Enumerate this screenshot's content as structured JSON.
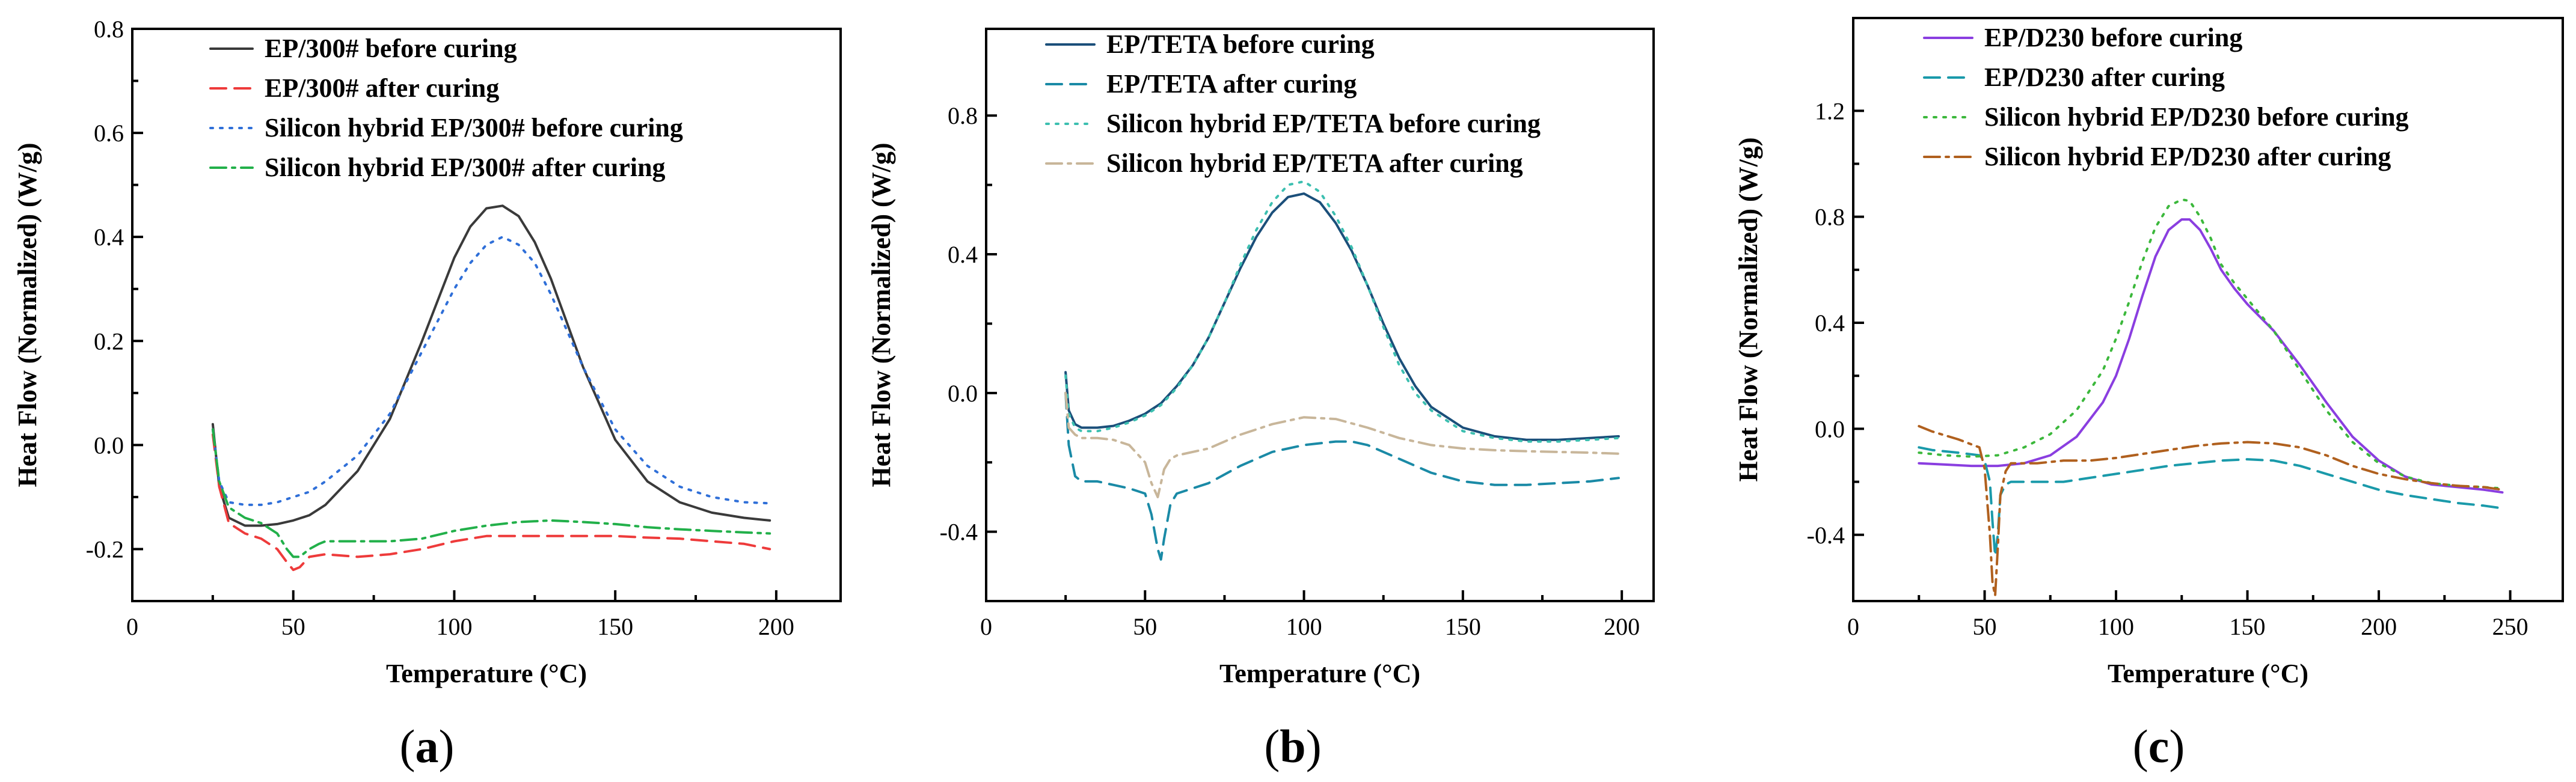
{
  "chart_data": [
    {
      "type": "line",
      "panel_label": "a",
      "xlabel": "Temperature (°C)",
      "ylabel": "Heat Flow (Normalized) (W/g)",
      "xlim": [
        0,
        220
      ],
      "ylim": [
        -0.3,
        0.8
      ],
      "xticks": [
        0,
        50,
        100,
        150,
        200
      ],
      "yticks": [
        -0.2,
        0.0,
        0.2,
        0.4,
        0.6,
        0.8
      ],
      "ytick_labels": [
        "-0.2",
        "0.0",
        "0.2",
        "0.4",
        "0.6",
        "0.8"
      ],
      "legend_position": "top-left",
      "series": [
        {
          "name": "EP/300# before curing",
          "color": "#3a3a3a",
          "dash": "solid",
          "x": [
            25,
            27,
            30,
            35,
            40,
            45,
            50,
            55,
            60,
            70,
            80,
            90,
            100,
            105,
            110,
            115,
            120,
            125,
            130,
            140,
            150,
            160,
            170,
            180,
            190,
            198
          ],
          "y": [
            0.04,
            -0.08,
            -0.14,
            -0.155,
            -0.155,
            -0.152,
            -0.145,
            -0.135,
            -0.115,
            -0.05,
            0.05,
            0.2,
            0.36,
            0.42,
            0.455,
            0.46,
            0.44,
            0.39,
            0.32,
            0.15,
            0.01,
            -0.07,
            -0.11,
            -0.13,
            -0.14,
            -0.145
          ]
        },
        {
          "name": "EP/300# after curing",
          "color": "#ee3b3b",
          "dash": "dashed",
          "x": [
            25,
            27,
            30,
            35,
            40,
            45,
            48,
            50,
            52,
            55,
            60,
            70,
            80,
            90,
            100,
            110,
            120,
            130,
            140,
            150,
            160,
            170,
            180,
            190,
            198
          ],
          "y": [
            0.02,
            -0.08,
            -0.15,
            -0.17,
            -0.18,
            -0.2,
            -0.225,
            -0.24,
            -0.235,
            -0.215,
            -0.21,
            -0.215,
            -0.21,
            -0.2,
            -0.185,
            -0.175,
            -0.175,
            -0.175,
            -0.175,
            -0.175,
            -0.178,
            -0.18,
            -0.185,
            -0.19,
            -0.2
          ]
        },
        {
          "name": "Silicon hybrid EP/300# before curing",
          "color": "#2f6fd8",
          "dash": "dotted",
          "x": [
            25,
            27,
            30,
            35,
            40,
            45,
            50,
            55,
            60,
            70,
            80,
            90,
            100,
            105,
            110,
            115,
            120,
            125,
            130,
            140,
            150,
            160,
            170,
            180,
            190,
            198
          ],
          "y": [
            0.03,
            -0.07,
            -0.11,
            -0.115,
            -0.115,
            -0.11,
            -0.1,
            -0.09,
            -0.07,
            -0.02,
            0.06,
            0.18,
            0.3,
            0.35,
            0.385,
            0.4,
            0.385,
            0.35,
            0.29,
            0.15,
            0.03,
            -0.04,
            -0.08,
            -0.1,
            -0.11,
            -0.112
          ]
        },
        {
          "name": "Silicon hybrid EP/300# after curing",
          "color": "#22b04a",
          "dash": "dashdot",
          "x": [
            25,
            27,
            30,
            35,
            40,
            45,
            48,
            50,
            52,
            55,
            58,
            60,
            70,
            80,
            90,
            100,
            110,
            120,
            130,
            140,
            150,
            160,
            170,
            180,
            190,
            198
          ],
          "y": [
            0.03,
            -0.07,
            -0.12,
            -0.14,
            -0.15,
            -0.17,
            -0.2,
            -0.215,
            -0.215,
            -0.2,
            -0.19,
            -0.185,
            -0.185,
            -0.185,
            -0.18,
            -0.165,
            -0.155,
            -0.148,
            -0.145,
            -0.148,
            -0.152,
            -0.158,
            -0.162,
            -0.165,
            -0.168,
            -0.17
          ]
        }
      ]
    },
    {
      "type": "line",
      "panel_label": "b",
      "xlabel": "Temperature (°C)",
      "ylabel": "Heat Flow (Normalized) (W/g)",
      "xlim": [
        0,
        210
      ],
      "ylim": [
        -0.6,
        1.05
      ],
      "xticks": [
        0,
        50,
        100,
        150,
        200
      ],
      "yticks": [
        -0.4,
        0.0,
        0.4,
        0.8
      ],
      "ytick_labels": [
        "-0.4",
        "0.0",
        "0.4",
        "0.8"
      ],
      "legend_position": "top-left",
      "series": [
        {
          "name": "EP/TETA before curing",
          "color": "#1b4f7a",
          "dash": "solid",
          "x": [
            25,
            26,
            28,
            30,
            35,
            40,
            45,
            50,
            55,
            60,
            65,
            70,
            75,
            80,
            85,
            90,
            95,
            100,
            105,
            110,
            115,
            120,
            125,
            130,
            135,
            140,
            150,
            160,
            170,
            180,
            190,
            199
          ],
          "y": [
            0.06,
            -0.05,
            -0.09,
            -0.1,
            -0.1,
            -0.095,
            -0.08,
            -0.06,
            -0.03,
            0.02,
            0.08,
            0.16,
            0.26,
            0.36,
            0.45,
            0.52,
            0.565,
            0.575,
            0.55,
            0.49,
            0.41,
            0.31,
            0.2,
            0.1,
            0.02,
            -0.04,
            -0.1,
            -0.125,
            -0.135,
            -0.135,
            -0.13,
            -0.125
          ]
        },
        {
          "name": "EP/TETA after curing",
          "color": "#1a8aa6",
          "dash": "dashed",
          "x": [
            25,
            26,
            28,
            30,
            35,
            40,
            45,
            50,
            52,
            54,
            55,
            56,
            58,
            60,
            70,
            80,
            90,
            100,
            110,
            115,
            120,
            130,
            140,
            150,
            160,
            170,
            180,
            190,
            199
          ],
          "y": [
            0.0,
            -0.15,
            -0.24,
            -0.255,
            -0.255,
            -0.265,
            -0.275,
            -0.29,
            -0.35,
            -0.45,
            -0.48,
            -0.42,
            -0.32,
            -0.29,
            -0.26,
            -0.21,
            -0.17,
            -0.15,
            -0.14,
            -0.14,
            -0.15,
            -0.19,
            -0.23,
            -0.255,
            -0.265,
            -0.265,
            -0.26,
            -0.255,
            -0.245
          ]
        },
        {
          "name": "Silicon hybrid EP/TETA before curing",
          "color": "#3cbfb0",
          "dash": "dotted",
          "x": [
            25,
            26,
            28,
            30,
            35,
            40,
            45,
            50,
            55,
            60,
            65,
            70,
            75,
            80,
            85,
            90,
            95,
            100,
            105,
            110,
            115,
            120,
            125,
            130,
            135,
            140,
            150,
            160,
            170,
            180,
            190,
            199
          ],
          "y": [
            0.05,
            -0.06,
            -0.1,
            -0.11,
            -0.11,
            -0.1,
            -0.085,
            -0.065,
            -0.035,
            0.015,
            0.08,
            0.16,
            0.26,
            0.37,
            0.47,
            0.55,
            0.6,
            0.61,
            0.58,
            0.51,
            0.42,
            0.31,
            0.19,
            0.08,
            0.0,
            -0.05,
            -0.11,
            -0.13,
            -0.14,
            -0.14,
            -0.135,
            -0.13
          ]
        },
        {
          "name": "Silicon hybrid EP/TETA after curing",
          "color": "#c8b69a",
          "dash": "dashdot",
          "x": [
            25,
            26,
            28,
            30,
            35,
            40,
            45,
            50,
            52,
            54,
            56,
            58,
            60,
            70,
            80,
            90,
            100,
            110,
            120,
            130,
            140,
            150,
            160,
            170,
            180,
            190,
            199
          ],
          "y": [
            0.0,
            -0.1,
            -0.12,
            -0.13,
            -0.13,
            -0.135,
            -0.15,
            -0.2,
            -0.26,
            -0.3,
            -0.22,
            -0.19,
            -0.18,
            -0.16,
            -0.12,
            -0.09,
            -0.07,
            -0.075,
            -0.1,
            -0.13,
            -0.15,
            -0.16,
            -0.165,
            -0.168,
            -0.17,
            -0.172,
            -0.175
          ]
        }
      ]
    },
    {
      "type": "line",
      "panel_label": "c",
      "xlabel": "Temperature (°C)",
      "ylabel": "Heat Flow (Normalized) (W/g)",
      "xlim": [
        0,
        270
      ],
      "ylim": [
        -0.65,
        1.55
      ],
      "xticks": [
        0,
        50,
        100,
        150,
        200,
        250
      ],
      "yticks": [
        -0.4,
        0.0,
        0.4,
        0.8,
        1.2
      ],
      "ytick_labels": [
        "-0.4",
        "0.0",
        "0.4",
        "0.8",
        "1.2"
      ],
      "legend_position": "top-left",
      "series": [
        {
          "name": "EP/D230 before curing",
          "color": "#8a3ee0",
          "dash": "solid",
          "x": [
            25,
            35,
            45,
            55,
            65,
            75,
            85,
            95,
            100,
            105,
            110,
            115,
            120,
            125,
            128,
            132,
            136,
            140,
            145,
            150,
            160,
            170,
            180,
            190,
            200,
            210,
            220,
            230,
            240,
            247
          ],
          "y": [
            -0.13,
            -0.135,
            -0.14,
            -0.14,
            -0.13,
            -0.1,
            -0.03,
            0.1,
            0.2,
            0.34,
            0.5,
            0.65,
            0.75,
            0.79,
            0.79,
            0.75,
            0.68,
            0.6,
            0.53,
            0.47,
            0.37,
            0.24,
            0.1,
            -0.03,
            -0.12,
            -0.18,
            -0.21,
            -0.22,
            -0.23,
            -0.24
          ]
        },
        {
          "name": "EP/D230 after curing",
          "color": "#1a9aaa",
          "dash": "dashed",
          "x": [
            25,
            30,
            40,
            48,
            50,
            52,
            53,
            54,
            55,
            56,
            58,
            60,
            70,
            80,
            90,
            100,
            110,
            120,
            130,
            140,
            150,
            160,
            170,
            180,
            190,
            200,
            210,
            220,
            230,
            240,
            247
          ],
          "y": [
            -0.07,
            -0.08,
            -0.09,
            -0.1,
            -0.12,
            -0.2,
            -0.35,
            -0.48,
            -0.4,
            -0.25,
            -0.21,
            -0.2,
            -0.2,
            -0.2,
            -0.185,
            -0.17,
            -0.155,
            -0.14,
            -0.13,
            -0.12,
            -0.115,
            -0.12,
            -0.14,
            -0.17,
            -0.2,
            -0.23,
            -0.25,
            -0.265,
            -0.28,
            -0.29,
            -0.3
          ]
        },
        {
          "name": "Silicon hybrid EP/D230 before curing",
          "color": "#3cb83c",
          "dash": "dotted",
          "x": [
            25,
            35,
            45,
            55,
            65,
            75,
            85,
            95,
            100,
            105,
            110,
            115,
            120,
            125,
            128,
            132,
            136,
            140,
            145,
            150,
            160,
            170,
            180,
            190,
            200,
            210,
            220,
            230,
            240,
            247
          ],
          "y": [
            -0.09,
            -0.1,
            -0.105,
            -0.1,
            -0.07,
            -0.02,
            0.07,
            0.22,
            0.34,
            0.48,
            0.63,
            0.76,
            0.84,
            0.865,
            0.86,
            0.8,
            0.72,
            0.62,
            0.55,
            0.49,
            0.37,
            0.22,
            0.07,
            -0.05,
            -0.13,
            -0.18,
            -0.205,
            -0.215,
            -0.22,
            -0.225
          ]
        },
        {
          "name": "Silicon hybrid EP/D230 after curing",
          "color": "#b0601e",
          "dash": "dashdot",
          "x": [
            25,
            30,
            40,
            48,
            50,
            52,
            53,
            54,
            55,
            56,
            58,
            60,
            70,
            80,
            90,
            100,
            110,
            120,
            130,
            140,
            150,
            160,
            170,
            180,
            190,
            200,
            210,
            220,
            230,
            240,
            247
          ],
          "y": [
            0.01,
            -0.01,
            -0.04,
            -0.07,
            -0.15,
            -0.4,
            -0.58,
            -0.63,
            -0.45,
            -0.25,
            -0.16,
            -0.13,
            -0.13,
            -0.12,
            -0.12,
            -0.11,
            -0.095,
            -0.08,
            -0.065,
            -0.055,
            -0.05,
            -0.055,
            -0.07,
            -0.1,
            -0.14,
            -0.17,
            -0.19,
            -0.205,
            -0.215,
            -0.22,
            -0.23
          ]
        }
      ]
    }
  ]
}
